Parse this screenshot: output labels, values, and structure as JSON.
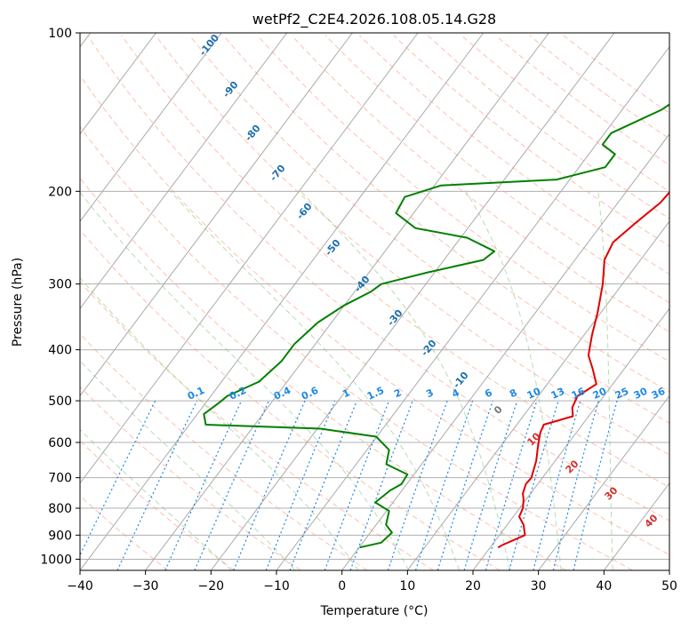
{
  "chart_data": {
    "type": "line",
    "subtype": "skew-T log-P diagram",
    "title": "wetPf2_C2E4.2026.108.05.14.G28",
    "xlabel": "Temperature (°C)",
    "ylabel": "Pressure (hPa)",
    "xlim": [
      -40,
      50
    ],
    "ylim": [
      1050,
      100
    ],
    "x_ticks": [
      -40,
      -30,
      -20,
      -10,
      0,
      10,
      20,
      30,
      40,
      50
    ],
    "y_ticks": [
      100,
      200,
      300,
      400,
      500,
      600,
      700,
      800,
      900,
      1000
    ],
    "grid": true,
    "colors": {
      "temperature": "#e00000",
      "dewpoint": "#008000",
      "dry_adiabats": "#ff7f50",
      "moist_adiabats": "#4caf50",
      "mixing_ratio": "#1e88e5",
      "isotherms": "#555555"
    },
    "series": [
      {
        "name": "Temperature",
        "color": "#e00000",
        "points": [
          [
            21.2,
            950
          ],
          [
            21.6,
            940
          ],
          [
            23.9,
            900
          ],
          [
            22.5,
            860
          ],
          [
            20.9,
            830
          ],
          [
            20.5,
            800
          ],
          [
            19.6,
            770
          ],
          [
            18.8,
            750
          ],
          [
            18.2,
            720
          ],
          [
            18.3,
            700
          ],
          [
            17.1,
            650
          ],
          [
            15.7,
            610
          ],
          [
            14.5,
            575
          ],
          [
            14.1,
            555
          ],
          [
            17.6,
            535
          ],
          [
            16.5,
            515
          ],
          [
            16.0,
            490
          ],
          [
            17.5,
            465
          ],
          [
            15.2,
            435
          ],
          [
            13.0,
            410
          ],
          [
            11.2,
            375
          ],
          [
            9.5,
            340
          ],
          [
            7.0,
            300
          ],
          [
            4.5,
            270
          ],
          [
            3.8,
            250
          ],
          [
            5.0,
            230
          ],
          [
            6.5,
            210
          ],
          [
            6.8,
            195
          ],
          [
            5.2,
            175
          ],
          [
            4.3,
            160
          ],
          [
            5.5,
            145
          ],
          [
            6.8,
            130
          ],
          [
            6.5,
            115
          ],
          [
            7.0,
            105
          ],
          [
            6.3,
            100
          ]
        ]
      },
      {
        "name": "Dewpoint",
        "color": "#008000",
        "points": [
          [
            0.1,
            950
          ],
          [
            2.8,
            930
          ],
          [
            3.3,
            890
          ],
          [
            1.5,
            860
          ],
          [
            0.4,
            810
          ],
          [
            -2.7,
            780
          ],
          [
            -1.8,
            740
          ],
          [
            -0.8,
            720
          ],
          [
            -1.0,
            690
          ],
          [
            -5.4,
            660
          ],
          [
            -6.6,
            620
          ],
          [
            -10.1,
            585
          ],
          [
            -19.5,
            565
          ],
          [
            -37.5,
            555
          ],
          [
            -39.0,
            530
          ],
          [
            -38.0,
            505
          ],
          [
            -37.5,
            490
          ],
          [
            -34.3,
            460
          ],
          [
            -33.2,
            420
          ],
          [
            -33.2,
            390
          ],
          [
            -32.1,
            355
          ],
          [
            -30.1,
            330
          ],
          [
            -27.5,
            310
          ],
          [
            -26.8,
            300
          ],
          [
            -21.0,
            285
          ],
          [
            -14.0,
            270
          ],
          [
            -13.3,
            260
          ],
          [
            -19.0,
            245
          ],
          [
            -28.0,
            235
          ],
          [
            -32.7,
            220
          ],
          [
            -33.2,
            205
          ],
          [
            -29.0,
            195
          ],
          [
            -12.0,
            190
          ],
          [
            -6.0,
            180
          ],
          [
            -6.0,
            170
          ],
          [
            -9.0,
            163
          ],
          [
            -9.0,
            155
          ],
          [
            -4.0,
            140
          ],
          [
            -1.0,
            125
          ],
          [
            0.7,
            115
          ],
          [
            1.9,
            105
          ],
          [
            2.3,
            100
          ]
        ]
      }
    ],
    "dry_adiabat_labels": [
      "-100",
      "-90",
      "-80",
      "-70",
      "-60",
      "-50",
      "-40",
      "-30",
      "-20",
      "-10"
    ],
    "mixing_ratio_labels": [
      "0.1",
      "0.2",
      "0.4",
      "0.6",
      "1",
      "1.5",
      "2",
      "3",
      "4",
      "6",
      "8",
      "10",
      "13",
      "16",
      "20",
      "25",
      "30",
      "36"
    ],
    "moist_adiabat_labels": [
      "0",
      "10",
      "20",
      "30",
      "40"
    ]
  }
}
